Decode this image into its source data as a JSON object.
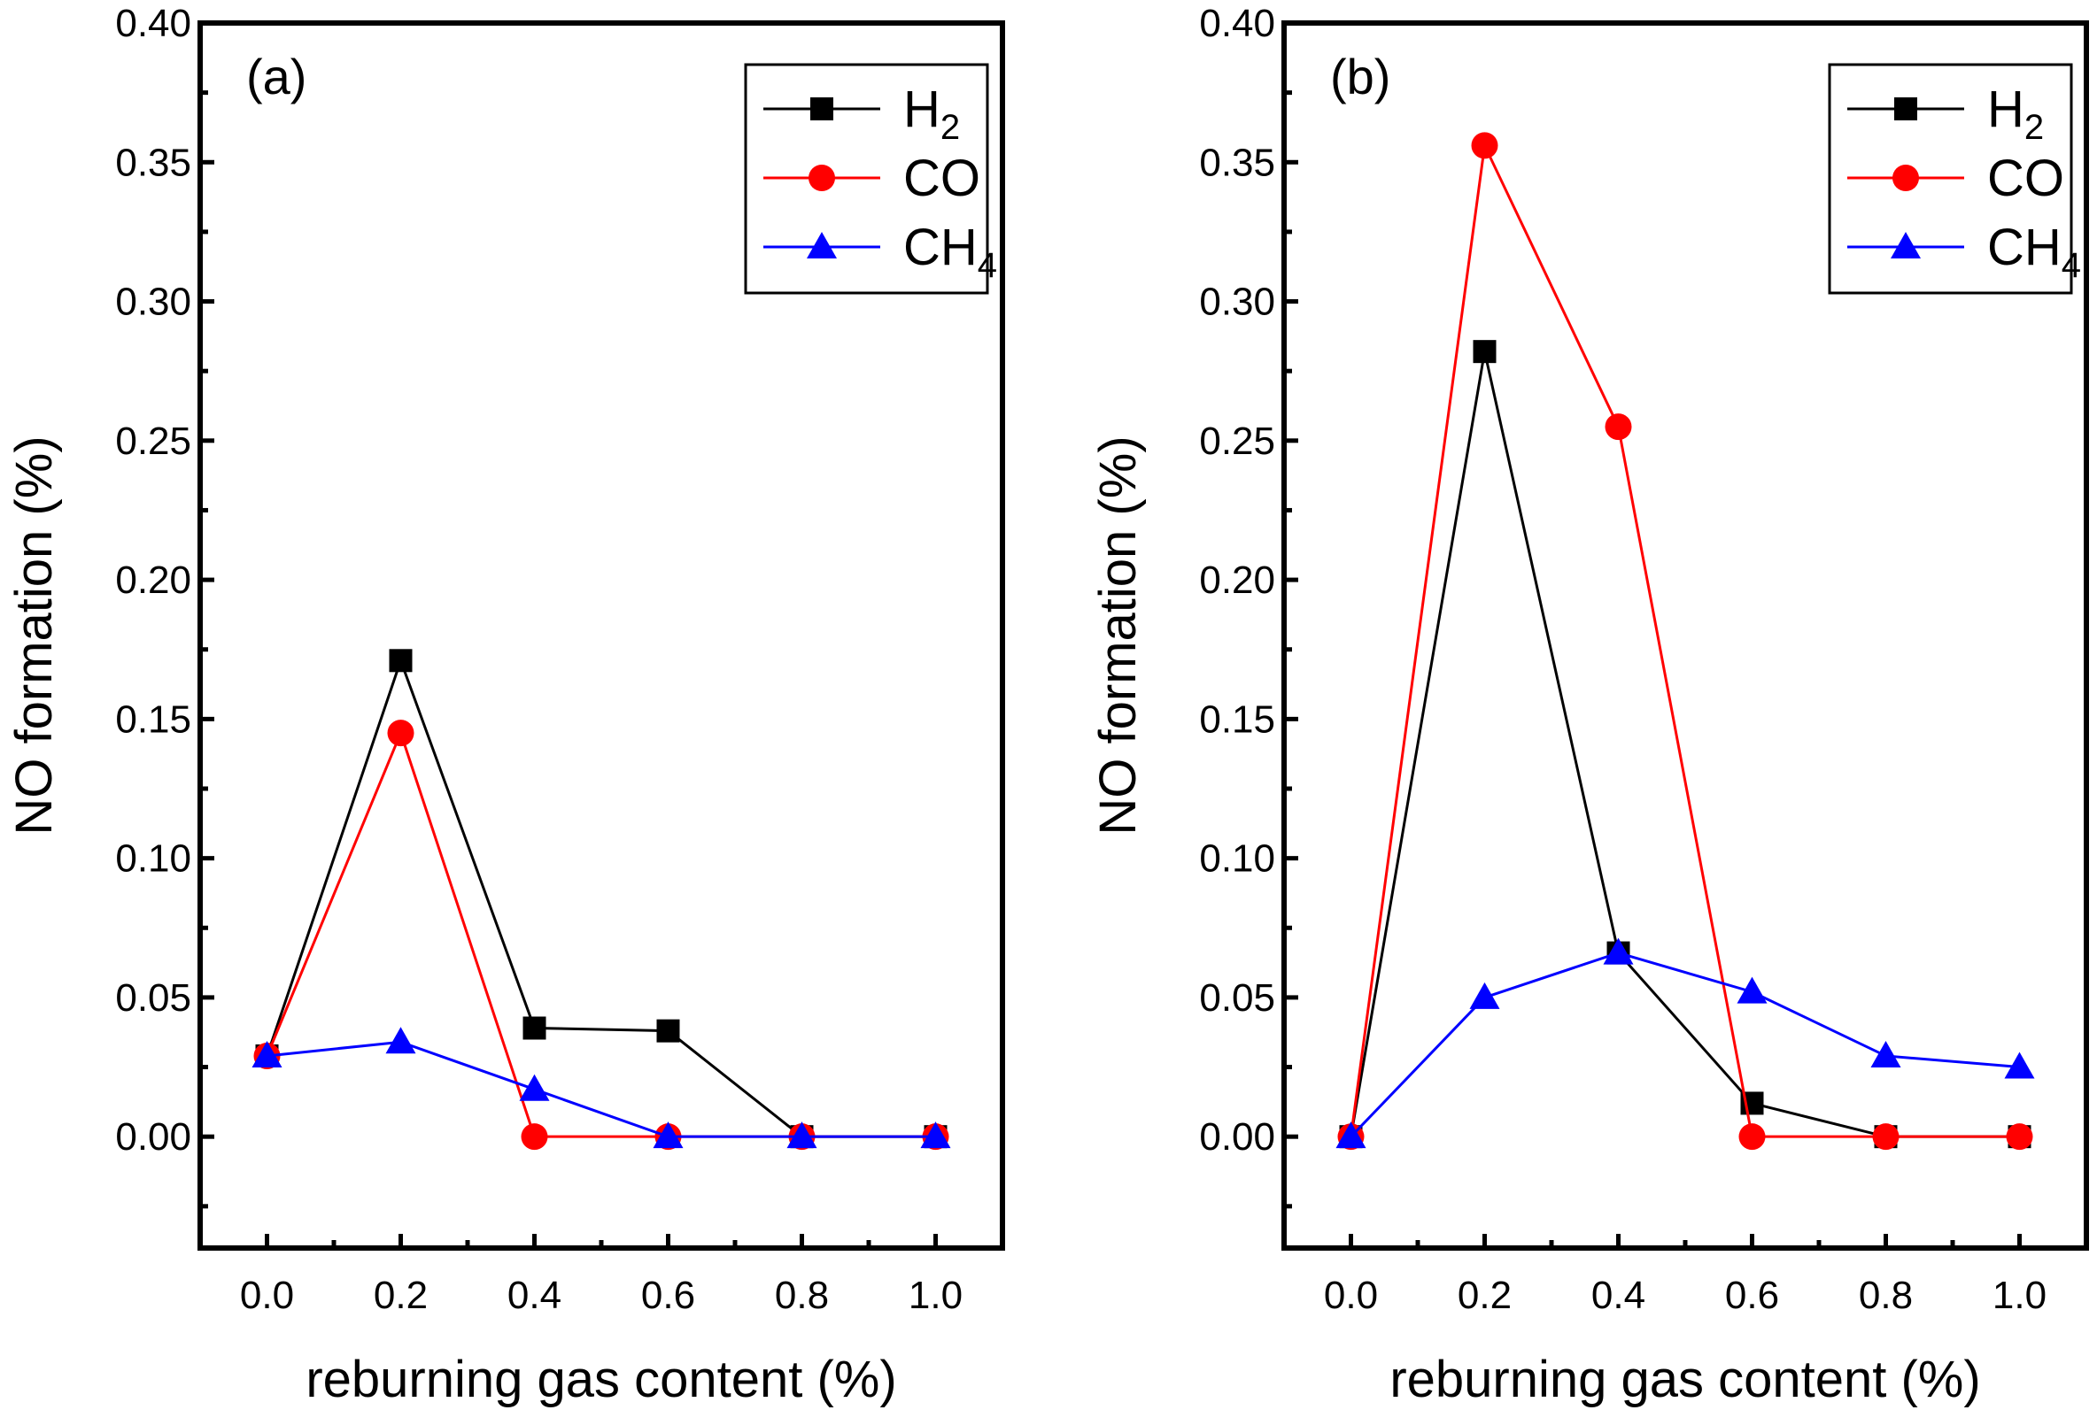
{
  "chart_data": [
    {
      "type": "line",
      "panel_label": "(a)",
      "xlabel": "reburning gas content (%)",
      "ylabel": "NO formation (%)",
      "xlim": [
        -0.1,
        1.1
      ],
      "ylim": [
        -0.04,
        0.4
      ],
      "xticks": [
        "0.0",
        "0.2",
        "0.4",
        "0.6",
        "0.8",
        "1.0"
      ],
      "yticks": [
        "0.00",
        "0.05",
        "0.10",
        "0.15",
        "0.20",
        "0.25",
        "0.30",
        "0.35",
        "0.40"
      ],
      "legend_position": "top-right",
      "x": [
        0.0,
        0.2,
        0.4,
        0.6,
        0.8,
        1.0
      ],
      "series": [
        {
          "name": "H",
          "subscript": "2",
          "color": "#000000",
          "marker": "square",
          "values": [
            0.029,
            0.171,
            0.039,
            0.038,
            0.0,
            0.0
          ]
        },
        {
          "name": "CO",
          "subscript": "",
          "color": "#ff0000",
          "marker": "circle",
          "values": [
            0.029,
            0.145,
            0.0,
            0.0,
            0.0,
            0.0
          ]
        },
        {
          "name": "CH",
          "subscript": "4",
          "color": "#0000ff",
          "marker": "triangle",
          "values": [
            0.029,
            0.034,
            0.017,
            0.0,
            0.0,
            0.0
          ]
        }
      ]
    },
    {
      "type": "line",
      "panel_label": "(b)",
      "xlabel": "reburning gas content (%)",
      "ylabel": "NO formation (%)",
      "xlim": [
        -0.1,
        1.1
      ],
      "ylim": [
        -0.04,
        0.4
      ],
      "xticks": [
        "0.0",
        "0.2",
        "0.4",
        "0.6",
        "0.8",
        "1.0"
      ],
      "yticks": [
        "0.00",
        "0.05",
        "0.10",
        "0.15",
        "0.20",
        "0.25",
        "0.30",
        "0.35",
        "0.40"
      ],
      "legend_position": "top-right",
      "x": [
        0.0,
        0.2,
        0.4,
        0.6,
        0.8,
        1.0
      ],
      "series": [
        {
          "name": "H",
          "subscript": "2",
          "color": "#000000",
          "marker": "square",
          "values": [
            0.0,
            0.282,
            0.066,
            0.012,
            0.0,
            0.0
          ]
        },
        {
          "name": "CO",
          "subscript": "",
          "color": "#ff0000",
          "marker": "circle",
          "values": [
            0.0,
            0.356,
            0.255,
            0.0,
            0.0,
            0.0
          ]
        },
        {
          "name": "CH",
          "subscript": "4",
          "color": "#0000ff",
          "marker": "triangle",
          "values": [
            0.0,
            0.05,
            0.066,
            0.052,
            0.029,
            0.025
          ]
        }
      ]
    }
  ]
}
